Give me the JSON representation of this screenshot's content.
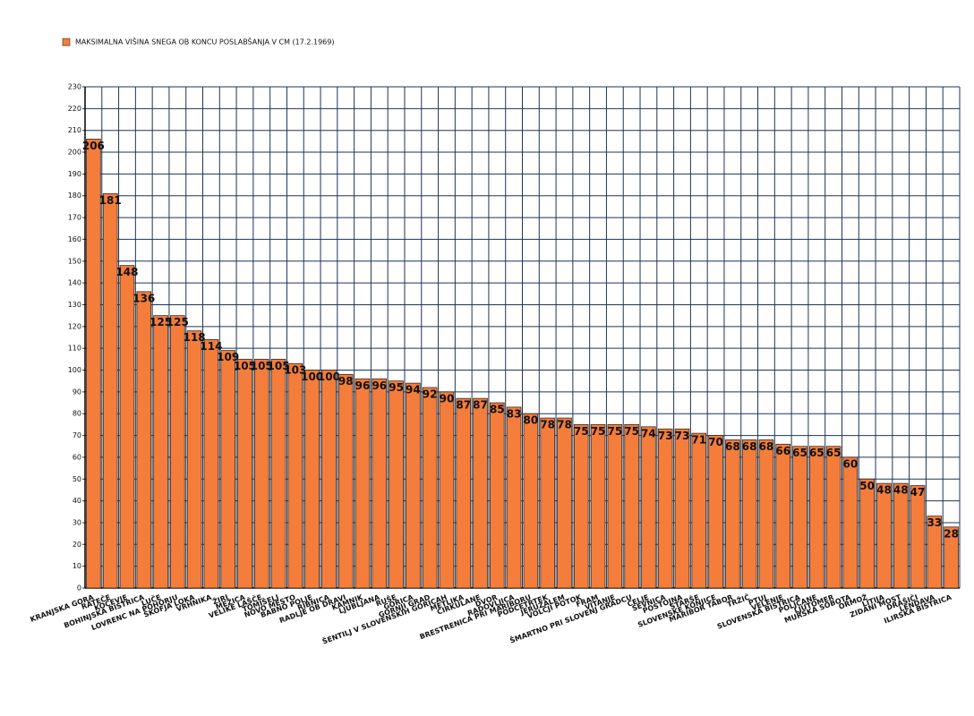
{
  "chart_data": {
    "type": "bar",
    "categories": [
      "KRANJSKA GORA",
      "RATEČE",
      "KOČEVJE",
      "BOHINJSKA BISTRICA",
      "LUČE",
      "LOVRENC NA POHORJU",
      "ŠKOFJA LOKA",
      "VRHNIKA",
      "ŽIRI",
      "MEŽICA",
      "VELIKE LAŠČE",
      "TOMIŠELJ",
      "NOVO MESTO",
      "BABNO POLJE",
      "RIBNICA",
      "RADLJE OB DRAVI",
      "KAMNIK",
      "LJUBLJANA",
      "RUŠE",
      "GORICA",
      "GORNJI GRAD",
      "ŠENTILJ V SLOVENSKIH GORICAH",
      "METLIKA",
      "CIRKULANE",
      "DVOR",
      "RADOVLJICA",
      "BRESTRENICA PRI MARIBORU",
      "PODČETRTEK",
      "JERUZALEM",
      "VOLČJI POTOK",
      "FRAM",
      "VITANJE",
      "ŠMARTNO PRI SLOVENJ GRADCU",
      "CELJE",
      "SEVNICA",
      "POSTOJNA",
      "STARŠE",
      "SLOVENSKE KONJICE",
      "MARIBOR TABOR",
      "TRŽIČ",
      "PTUJ",
      "VELENJE",
      "SLOVENSKA BISTRICA",
      "POLJČANE",
      "LJUTOMER",
      "MURSKA SOBOTA",
      "ORMOŽ",
      "LITIJA",
      "ZIDANI MOST",
      "DRAŠIČI",
      "LENDAVA",
      "ILIRSKA BISTRICA"
    ],
    "series": [
      {
        "name": "MAKSIMALNA VIŠINA SNEGA OB KONCU POSLABŠANJA V CM (17.2.1969)",
        "color": "#f47d3b",
        "values": [
          206,
          181,
          148,
          136,
          125,
          125,
          118,
          114,
          109,
          105,
          105,
          105,
          103,
          100,
          100,
          98,
          96,
          96,
          95,
          94,
          92,
          90,
          87,
          87,
          85,
          83,
          80,
          78,
          78,
          75,
          75,
          75,
          75,
          74,
          73,
          73,
          71,
          70,
          68,
          68,
          68,
          66,
          65,
          65,
          65,
          60,
          50,
          48,
          48,
          47,
          33,
          28
        ]
      }
    ],
    "ylim": [
      0,
      230
    ],
    "yticks": [
      0,
      10,
      20,
      30,
      40,
      50,
      60,
      70,
      80,
      90,
      100,
      110,
      120,
      130,
      140,
      150,
      160,
      170,
      180,
      190,
      200,
      210,
      220,
      230
    ],
    "grid": true,
    "legend": "top-left"
  }
}
